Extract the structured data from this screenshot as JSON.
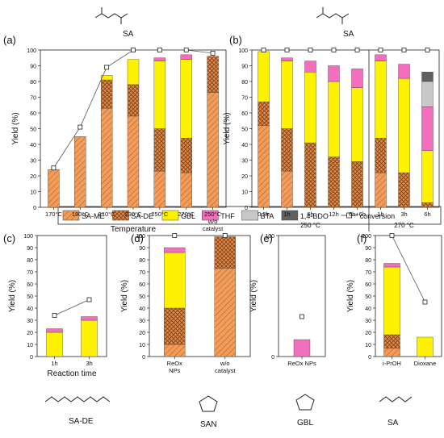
{
  "colors": {
    "sa_me": "#F39C5A",
    "sa_de": "#E08A4A",
    "gbl": "#FFF200",
    "thf": "#F36FBD",
    "bta": "#C8C8C8",
    "bdo": "#606060",
    "conversion_line": "#555555"
  },
  "legend": {
    "items": [
      "SA-ME",
      "SA-DE",
      "GBL",
      "THF",
      "BTA",
      "1,4-BDO",
      "conversion"
    ]
  },
  "structures": {
    "a": "SA",
    "b": "SA",
    "c": "SA-DE",
    "d": "SAN",
    "e": "GBL",
    "f": "SA"
  },
  "chart_data": [
    {
      "panel": "(a)",
      "type": "bar",
      "stacked": true,
      "xlabel": "Temperature",
      "ylabel": "Yield (%)",
      "ylim": [
        0,
        100
      ],
      "yticks": [
        0,
        10,
        20,
        30,
        40,
        50,
        60,
        70,
        80,
        90,
        100
      ],
      "categories": [
        "170°C",
        "190°C",
        "210°C",
        "230°C",
        "250°C",
        "270°C",
        "250°C w/o catalyst"
      ],
      "series": [
        {
          "name": "SA-ME",
          "values": [
            24,
            45,
            63,
            58,
            23,
            22,
            73
          ]
        },
        {
          "name": "SA-DE",
          "values": [
            0,
            0,
            18,
            20,
            27,
            22,
            23
          ]
        },
        {
          "name": "GBL",
          "values": [
            0,
            0,
            3,
            16,
            43,
            50,
            0
          ]
        },
        {
          "name": "THF",
          "values": [
            0,
            0,
            0,
            0,
            2,
            3,
            0
          ]
        }
      ],
      "conversion": [
        25,
        51,
        89,
        100,
        100,
        100,
        98
      ]
    },
    {
      "panel": "(b)",
      "type": "bar",
      "stacked": true,
      "ylabel": "Yield (%)",
      "ylim": [
        0,
        100
      ],
      "yticks": [
        0,
        10,
        20,
        30,
        40,
        50,
        60,
        70,
        80,
        90,
        100
      ],
      "groups": [
        "250 °C",
        "270 °C"
      ],
      "categories": [
        "0.5h",
        "1h",
        "6h",
        "12h",
        "6h+6h",
        "1h",
        "3h",
        "6h"
      ],
      "category_group": [
        0,
        0,
        0,
        0,
        0,
        1,
        1,
        1
      ],
      "series": [
        {
          "name": "SA-ME",
          "values": [
            52,
            23,
            0,
            0,
            0,
            22,
            0,
            0
          ]
        },
        {
          "name": "SA-DE",
          "values": [
            15,
            27,
            41,
            32,
            29,
            22,
            22,
            3
          ]
        },
        {
          "name": "GBL",
          "values": [
            32,
            43,
            45,
            48,
            47,
            49,
            60,
            33
          ]
        },
        {
          "name": "THF",
          "values": [
            0,
            2,
            7,
            10,
            12,
            4,
            9,
            28
          ]
        },
        {
          "name": "BTA",
          "values": [
            0,
            0,
            0,
            0,
            0,
            0,
            0,
            16
          ]
        },
        {
          "name": "1,4-BDO",
          "values": [
            0,
            0,
            0,
            0,
            0,
            0,
            0,
            6
          ]
        }
      ],
      "conversion": [
        100,
        100,
        100,
        100,
        100,
        100,
        100,
        100
      ]
    },
    {
      "panel": "(c)",
      "type": "bar",
      "stacked": true,
      "xlabel": "Reaction time",
      "ylabel": "Yield (%)",
      "ylim": [
        0,
        100
      ],
      "yticks": [
        0,
        10,
        20,
        30,
        40,
        50,
        60,
        70,
        80,
        90,
        100
      ],
      "categories": [
        "1h",
        "3h"
      ],
      "series": [
        {
          "name": "GBL",
          "values": [
            20,
            30
          ]
        },
        {
          "name": "THF",
          "values": [
            3,
            3
          ]
        }
      ],
      "conversion": [
        34,
        47
      ]
    },
    {
      "panel": "(d)",
      "type": "bar",
      "stacked": true,
      "ylabel": "Yield (%)",
      "ylim": [
        0,
        100
      ],
      "yticks": [
        0,
        10,
        20,
        30,
        40,
        50,
        60,
        70,
        80,
        90,
        100
      ],
      "categories": [
        "ReOx NPs",
        "w/o catalyst"
      ],
      "series": [
        {
          "name": "SA-ME",
          "values": [
            10,
            73
          ]
        },
        {
          "name": "SA-DE",
          "values": [
            30,
            26
          ]
        },
        {
          "name": "GBL",
          "values": [
            46,
            0
          ]
        },
        {
          "name": "THF",
          "values": [
            4,
            0
          ]
        }
      ],
      "conversion": [
        100,
        100
      ]
    },
    {
      "panel": "(e)",
      "type": "bar",
      "stacked": true,
      "ylabel": "Yield (%)",
      "ylim": [
        0,
        100
      ],
      "yticks": [
        0,
        100
      ],
      "categories": [
        "ReOx NPs"
      ],
      "series": [
        {
          "name": "THF",
          "values": [
            14
          ]
        }
      ],
      "conversion": [
        33
      ]
    },
    {
      "panel": "(f)",
      "type": "bar",
      "stacked": true,
      "ylabel": "Yield (%)",
      "ylim": [
        0,
        100
      ],
      "yticks": [
        0,
        10,
        20,
        30,
        40,
        50,
        60,
        70,
        80,
        90,
        100
      ],
      "categories": [
        "i-PrOH",
        "Dioxane"
      ],
      "series": [
        {
          "name": "SA-ME",
          "values": [
            7,
            0
          ]
        },
        {
          "name": "SA-DE",
          "values": [
            11,
            0
          ]
        },
        {
          "name": "GBL",
          "values": [
            56,
            16
          ]
        },
        {
          "name": "THF",
          "values": [
            3,
            0
          ]
        }
      ],
      "conversion": [
        100,
        45
      ]
    }
  ]
}
